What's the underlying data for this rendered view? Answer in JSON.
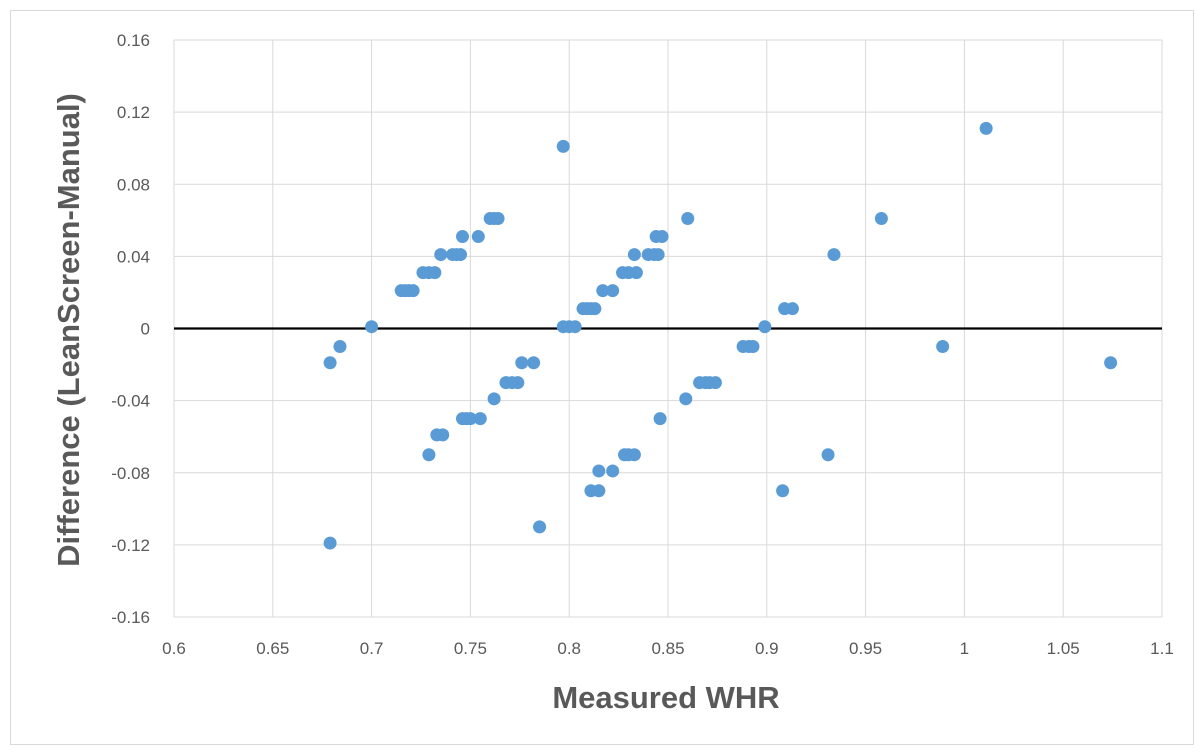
{
  "chart_data": {
    "type": "scatter",
    "title": "",
    "xlabel": "Measured WHR",
    "ylabel": "Difference (LeanScreen-Manual)",
    "xlim": [
      0.6,
      1.1
    ],
    "ylim": [
      -0.16,
      0.16
    ],
    "x_ticks": [
      "0.6",
      "0.65",
      "0.7",
      "0.75",
      "0.8",
      "0.85",
      "0.9",
      "0.95",
      "1",
      "1.05",
      "1.1"
    ],
    "y_ticks": [
      "0.16",
      "0.12",
      "0.08",
      "0.04",
      "0",
      "-0.04",
      "-0.08",
      "-0.12",
      "-0.16"
    ],
    "grid": true,
    "legend": "none",
    "zero_line": 0,
    "marker_color": "#5b9bd5",
    "series": [
      {
        "points": [
          [
            0.679,
            -0.019
          ],
          [
            0.684,
            -0.01
          ],
          [
            0.679,
            -0.119
          ],
          [
            0.7,
            0.001
          ],
          [
            0.715,
            0.021
          ],
          [
            0.717,
            0.021
          ],
          [
            0.719,
            0.021
          ],
          [
            0.721,
            0.021
          ],
          [
            0.726,
            0.031
          ],
          [
            0.729,
            0.031
          ],
          [
            0.732,
            0.031
          ],
          [
            0.735,
            0.041
          ],
          [
            0.741,
            0.041
          ],
          [
            0.743,
            0.041
          ],
          [
            0.745,
            0.041
          ],
          [
            0.746,
            0.051
          ],
          [
            0.754,
            0.051
          ],
          [
            0.76,
            0.061
          ],
          [
            0.762,
            0.061
          ],
          [
            0.764,
            0.061
          ],
          [
            0.729,
            -0.07
          ],
          [
            0.733,
            -0.059
          ],
          [
            0.736,
            -0.059
          ],
          [
            0.746,
            -0.05
          ],
          [
            0.748,
            -0.05
          ],
          [
            0.75,
            -0.05
          ],
          [
            0.755,
            -0.05
          ],
          [
            0.762,
            -0.039
          ],
          [
            0.768,
            -0.03
          ],
          [
            0.771,
            -0.03
          ],
          [
            0.774,
            -0.03
          ],
          [
            0.776,
            -0.019
          ],
          [
            0.782,
            -0.019
          ],
          [
            0.785,
            -0.11
          ],
          [
            0.797,
            0.101
          ],
          [
            0.797,
            0.001
          ],
          [
            0.8,
            0.001
          ],
          [
            0.803,
            0.001
          ],
          [
            0.807,
            0.011
          ],
          [
            0.809,
            0.011
          ],
          [
            0.811,
            0.011
          ],
          [
            0.813,
            0.011
          ],
          [
            0.817,
            0.021
          ],
          [
            0.822,
            0.021
          ],
          [
            0.827,
            0.031
          ],
          [
            0.83,
            0.031
          ],
          [
            0.834,
            0.031
          ],
          [
            0.833,
            0.041
          ],
          [
            0.84,
            0.041
          ],
          [
            0.843,
            0.041
          ],
          [
            0.845,
            0.041
          ],
          [
            0.844,
            0.051
          ],
          [
            0.847,
            0.051
          ],
          [
            0.86,
            0.061
          ],
          [
            0.811,
            -0.09
          ],
          [
            0.815,
            -0.09
          ],
          [
            0.815,
            -0.079
          ],
          [
            0.822,
            -0.079
          ],
          [
            0.828,
            -0.07
          ],
          [
            0.83,
            -0.07
          ],
          [
            0.833,
            -0.07
          ],
          [
            0.846,
            -0.05
          ],
          [
            0.859,
            -0.039
          ],
          [
            0.866,
            -0.03
          ],
          [
            0.869,
            -0.03
          ],
          [
            0.871,
            -0.03
          ],
          [
            0.874,
            -0.03
          ],
          [
            0.888,
            -0.01
          ],
          [
            0.891,
            -0.01
          ],
          [
            0.893,
            -0.01
          ],
          [
            0.899,
            0.001
          ],
          [
            0.909,
            0.011
          ],
          [
            0.913,
            0.011
          ],
          [
            0.908,
            -0.09
          ],
          [
            0.931,
            -0.07
          ],
          [
            0.934,
            0.041
          ],
          [
            0.958,
            0.061
          ],
          [
            0.989,
            -0.01
          ],
          [
            1.011,
            0.111
          ],
          [
            1.074,
            -0.019
          ]
        ]
      }
    ]
  }
}
